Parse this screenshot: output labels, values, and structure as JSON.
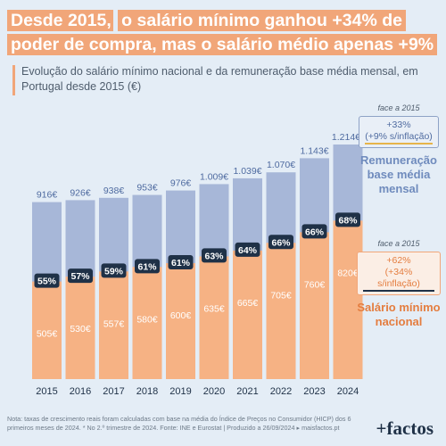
{
  "title": {
    "part1": "Desde 2015,",
    "part2": "o salário mínimo ganhou +34% de poder de compra, mas o salário médio apenas +9%"
  },
  "subtitle": "Evolução do salário mínimo nacional e da remuneração base média mensal, em Portugal desde 2015 (€)",
  "annotations": {
    "avg": {
      "note": "face a 2015",
      "line1": "+33%",
      "line2": "(+9% s/inflação)",
      "label": "Remuneração base média mensal"
    },
    "min": {
      "note": "face a 2015",
      "line1": "+62%",
      "line2": "(+34% s/inflação)",
      "label": "Salário mínimo nacional"
    }
  },
  "footer": "Nota: taxas de crescimento reais foram calculadas com base na média do Índice de Preços no Consumidor (HICP) dos 6 primeiros meses de 2024. * No 2.º trimestre de 2024. Fonte: INE e Eurostat | Produzido a 26/09/2024 ▸ maisfactos.pt",
  "logo": "+factos",
  "colors": {
    "avg": "#a7b7d8",
    "min": "#f6b284",
    "dark": "#1f3147",
    "accent": "#f1a679"
  },
  "chart_data": {
    "type": "bar",
    "categories": [
      "2015",
      "2016",
      "2017",
      "2018",
      "2019",
      "2020",
      "2021",
      "2022",
      "2023",
      "2024"
    ],
    "series": [
      {
        "name": "Salário mínimo nacional",
        "values": [
          505,
          530,
          557,
          580,
          600,
          635,
          665,
          705,
          760,
          820
        ],
        "labels": [
          "505€",
          "530€",
          "557€",
          "580€",
          "600€",
          "635€",
          "665€",
          "705€",
          "760€",
          "820€"
        ]
      },
      {
        "name": "Remuneração base média mensal",
        "values": [
          916,
          926,
          938,
          953,
          976,
          1009,
          1039,
          1070,
          1143,
          1214
        ],
        "labels": [
          "916€",
          "926€",
          "938€",
          "953€",
          "976€",
          "1.009€",
          "1.039€",
          "1.070€",
          "1.143€",
          "1.214€*"
        ]
      }
    ],
    "ratio_labels": [
      "55%",
      "57%",
      "59%",
      "61%",
      "61%",
      "63%",
      "64%",
      "66%",
      "66%",
      "68%"
    ],
    "ylim": [
      0,
      1214
    ],
    "grid": false
  }
}
